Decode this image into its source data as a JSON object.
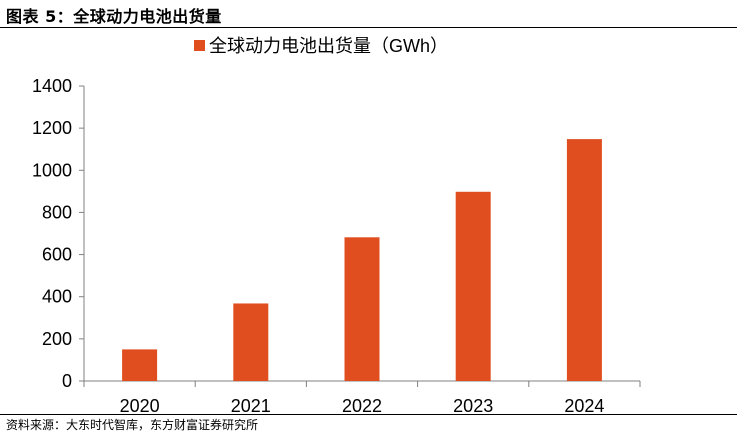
{
  "figure": {
    "title": "图表 5：全球动力电池出货量",
    "source": "资料来源：大东时代智库，东方财富证券研究所"
  },
  "chart_data": {
    "type": "bar",
    "categories": [
      "2020",
      "2021",
      "2022",
      "2023",
      "2024"
    ],
    "series": [
      {
        "name": "全球动力电池出货量（GWh）",
        "values": [
          150,
          368,
          682,
          898,
          1148
        ],
        "color": "#E04E1F"
      }
    ],
    "yticks": [
      0,
      200,
      400,
      600,
      800,
      1000,
      1200,
      1400
    ],
    "ylim": [
      0,
      1400
    ],
    "grid": false,
    "legend_position": "top-center"
  }
}
